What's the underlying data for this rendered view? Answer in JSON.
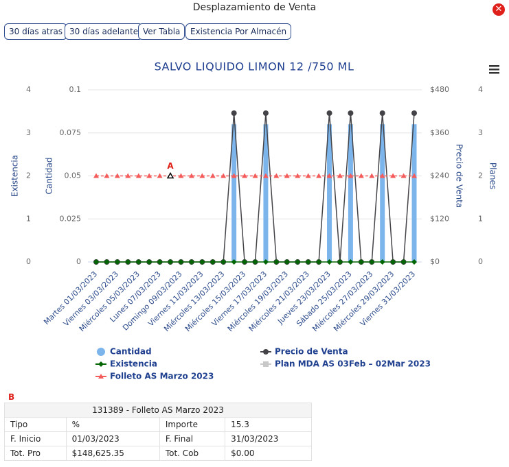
{
  "header": {
    "title": "Desplazamiento de Venta",
    "buttons": [
      "30 días atras",
      "30 días adelante",
      "Ver Tabla",
      "Existencia Por Almacén"
    ]
  },
  "chart_data": {
    "type": "combo",
    "title": "SALVO LIQUIDO LIMON 12 /750 ML",
    "categories": [
      "Martes 01/03/2023",
      null,
      "Viernes 03/03/2023",
      null,
      "Miércoles 05/03/2023",
      null,
      "Lunes 07/03/2023",
      null,
      "Domingo 09/03/2023",
      null,
      "Viernes 11/03/2023",
      null,
      "Miércoles 13/03/2023",
      null,
      "Miércoles 15/03/2023",
      null,
      "Viernes 17/03/2023",
      null,
      "Miércoles 19/03/2023",
      null,
      "Miércoles 21/03/2023",
      null,
      "Jueves 23/03/2023",
      null,
      "Sábado 25/03/2023",
      null,
      "Miércoles 27/03/2023",
      null,
      "Miércoles 29/03/2023",
      null,
      "Viernes 31/03/2023"
    ],
    "y_axes": [
      {
        "title": "Existencia",
        "side": "left",
        "lim": [
          0,
          4
        ],
        "ticks": [
          0,
          1,
          2,
          3,
          4
        ],
        "grid": false
      },
      {
        "title": "Cantidad",
        "side": "left",
        "lim": [
          0,
          0.1
        ],
        "ticks": [
          0,
          0.025,
          0.05,
          0.075,
          0.1
        ],
        "grid": true
      },
      {
        "title": "Precio de Venta",
        "side": "right",
        "lim": [
          0,
          480
        ],
        "ticks": [
          {
            "value": 0,
            "label": "$0"
          },
          {
            "value": 120,
            "label": "$120"
          },
          {
            "value": 240,
            "label": "$240"
          },
          {
            "value": 360,
            "label": "$360"
          },
          {
            "value": 480,
            "label": "$480"
          }
        ],
        "grid": false
      },
      {
        "title": "Planes",
        "side": "right",
        "lim": [
          0,
          4
        ],
        "ticks": [
          0,
          1,
          2,
          3,
          4
        ],
        "grid": false
      }
    ],
    "series": [
      {
        "name": "Cantidad",
        "type": "column",
        "axis": 1,
        "color": "#7cb5ec",
        "marker": "circle",
        "values": [
          0,
          0,
          0,
          0,
          0,
          0,
          0,
          0,
          0,
          0,
          0,
          0,
          0,
          0.08,
          0,
          0,
          0.08,
          0,
          0,
          0,
          0,
          0,
          0.08,
          0,
          0.08,
          0,
          0,
          0.08,
          0,
          0,
          0.08
        ]
      },
      {
        "name": "Precio de Venta",
        "type": "line",
        "axis": 2,
        "color": "#434348",
        "marker": "circle",
        "values": [
          0,
          0,
          0,
          0,
          0,
          0,
          0,
          0,
          0,
          0,
          0,
          0,
          0,
          415,
          0,
          0,
          415,
          0,
          0,
          0,
          0,
          0,
          415,
          0,
          415,
          0,
          0,
          415,
          0,
          0,
          415
        ]
      },
      {
        "name": "Existencia",
        "type": "line",
        "axis": 0,
        "color": "#006400",
        "marker": "diamond",
        "values": [
          0,
          0,
          0,
          0,
          0,
          0,
          0,
          0,
          0,
          0,
          0,
          0,
          0,
          0,
          0,
          0,
          0,
          0,
          0,
          0,
          0,
          0,
          0,
          0,
          0,
          0,
          0,
          0,
          0,
          0,
          0
        ]
      },
      {
        "name": "Plan MDA AS 03Feb – 02Mar 2023",
        "type": "line",
        "axis": 3,
        "color": "#c8c8c8",
        "marker": "square",
        "values": [
          null,
          null,
          null,
          null,
          null,
          null,
          null,
          null,
          null,
          null,
          null,
          null,
          null,
          null,
          null,
          null,
          null,
          null,
          null,
          null,
          null,
          null,
          null,
          null,
          null,
          null,
          null,
          null,
          null,
          null,
          null
        ]
      },
      {
        "name": "Folleto AS Marzo 2023",
        "type": "line",
        "axis": 3,
        "color": "#f45b5b",
        "marker": "triangle",
        "dash": true,
        "values": [
          2,
          2,
          2,
          2,
          2,
          2,
          2,
          2,
          2,
          2,
          2,
          2,
          2,
          2,
          2,
          2,
          2,
          2,
          2,
          2,
          2,
          2,
          2,
          2,
          2,
          2,
          2,
          2,
          2,
          2,
          2
        ]
      }
    ],
    "annotations": [
      {
        "text": "A",
        "series": 4,
        "index": 7
      }
    ]
  },
  "table": {
    "label": "B",
    "title": "131389 - Folleto AS Marzo 2023",
    "rows": [
      [
        "Tipo",
        "%",
        "Importe",
        "15.3"
      ],
      [
        "F. Inicio",
        "01/03/2023",
        "F. Final",
        "31/03/2023"
      ],
      [
        "Tot. Pro",
        "$148,625.35",
        "Tot. Cob",
        "$0.00"
      ]
    ]
  }
}
